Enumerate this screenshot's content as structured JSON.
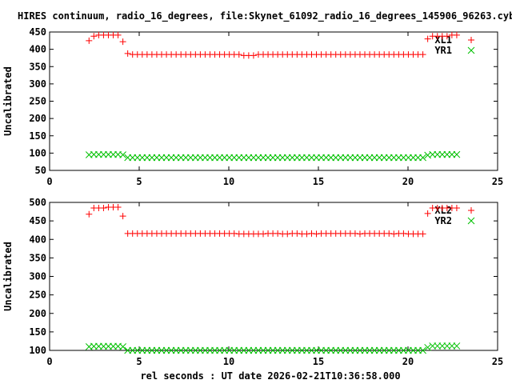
{
  "chart_data": [
    {
      "type": "scatter",
      "title": "HIRES continuum, radio_16_degrees, file:Skynet_61092_radio_16_degrees_145906_96263.cyb.txt",
      "ylabel": "Uncalibrated",
      "xlabel": "",
      "xlim": [
        0,
        25
      ],
      "ylim": [
        50,
        450
      ],
      "xticks": [
        "0",
        "5",
        "10",
        "15",
        "20",
        "25"
      ],
      "yticks": [
        "50",
        "100",
        "150",
        "200",
        "250",
        "300",
        "350",
        "400",
        "450"
      ],
      "x_start": 2.2,
      "x_step": 0.27,
      "legend_position": "top-right",
      "series": [
        {
          "name": "XL1",
          "marker": "plus",
          "color": "#ff0000",
          "values": [
            425,
            438,
            441,
            441,
            441,
            441,
            441,
            422,
            388,
            385,
            385,
            385,
            385,
            385,
            385,
            385,
            385,
            385,
            385,
            385,
            385,
            385,
            385,
            385,
            385,
            385,
            385,
            385,
            385,
            385,
            385,
            385,
            382,
            382,
            382,
            385,
            385,
            385,
            385,
            385,
            385,
            385,
            385,
            385,
            385,
            385,
            385,
            385,
            385,
            385,
            385,
            385,
            385,
            385,
            385,
            385,
            385,
            385,
            385,
            385,
            385,
            385,
            385,
            385,
            385,
            385,
            385,
            385,
            385,
            385,
            430,
            438,
            438,
            438,
            438,
            441,
            441
          ]
        },
        {
          "name": "YR1",
          "marker": "cross",
          "color": "#00c000",
          "values": [
            95,
            96,
            96,
            96,
            96,
            96,
            96,
            95,
            87,
            87,
            87,
            87,
            87,
            87,
            87,
            87,
            87,
            87,
            87,
            87,
            87,
            87,
            87,
            87,
            87,
            87,
            87,
            87,
            87,
            87,
            87,
            87,
            87,
            87,
            87,
            87,
            87,
            87,
            87,
            87,
            87,
            87,
            87,
            87,
            87,
            87,
            87,
            87,
            87,
            87,
            87,
            87,
            87,
            87,
            87,
            87,
            87,
            87,
            87,
            87,
            87,
            87,
            87,
            87,
            87,
            87,
            87,
            87,
            87,
            87,
            94,
            96,
            96,
            96,
            96,
            96,
            96
          ]
        }
      ]
    },
    {
      "type": "scatter",
      "title": "",
      "ylabel": "Uncalibrated",
      "xlabel": "rel seconds : UT date 2026-02-21T10:36:58.000",
      "xlim": [
        0,
        25
      ],
      "ylim": [
        100,
        500
      ],
      "xticks": [
        "0",
        "5",
        "10",
        "15",
        "20",
        "25"
      ],
      "yticks": [
        "100",
        "150",
        "200",
        "250",
        "300",
        "350",
        "400",
        "450",
        "500"
      ],
      "x_start": 2.2,
      "x_step": 0.27,
      "legend_position": "top-right",
      "series": [
        {
          "name": "XL2",
          "marker": "plus",
          "color": "#ff0000",
          "values": [
            468,
            485,
            485,
            485,
            487,
            487,
            487,
            463,
            416,
            416,
            416,
            416,
            416,
            416,
            416,
            416,
            416,
            416,
            416,
            416,
            416,
            416,
            416,
            416,
            416,
            416,
            416,
            416,
            416,
            416,
            416,
            415,
            415,
            415,
            415,
            415,
            415,
            416,
            416,
            416,
            415,
            415,
            416,
            416,
            415,
            415,
            416,
            415,
            416,
            416,
            416,
            416,
            416,
            416,
            416,
            416,
            415,
            416,
            416,
            416,
            416,
            416,
            416,
            415,
            416,
            416,
            415,
            415,
            415,
            415,
            470,
            485,
            485,
            485,
            485,
            485,
            485
          ]
        },
        {
          "name": "YR2",
          "marker": "cross",
          "color": "#00c000",
          "values": [
            110,
            111,
            111,
            111,
            111,
            111,
            111,
            110,
            100,
            100,
            100,
            100,
            100,
            100,
            100,
            100,
            100,
            100,
            100,
            100,
            100,
            100,
            100,
            100,
            100,
            100,
            100,
            100,
            100,
            100,
            100,
            100,
            100,
            100,
            100,
            100,
            100,
            100,
            100,
            100,
            100,
            100,
            100,
            100,
            100,
            100,
            100,
            100,
            100,
            100,
            100,
            100,
            100,
            100,
            100,
            100,
            100,
            100,
            100,
            100,
            100,
            100,
            100,
            100,
            100,
            100,
            100,
            100,
            100,
            100,
            108,
            112,
            112,
            112,
            112,
            112,
            112
          ]
        }
      ]
    }
  ]
}
